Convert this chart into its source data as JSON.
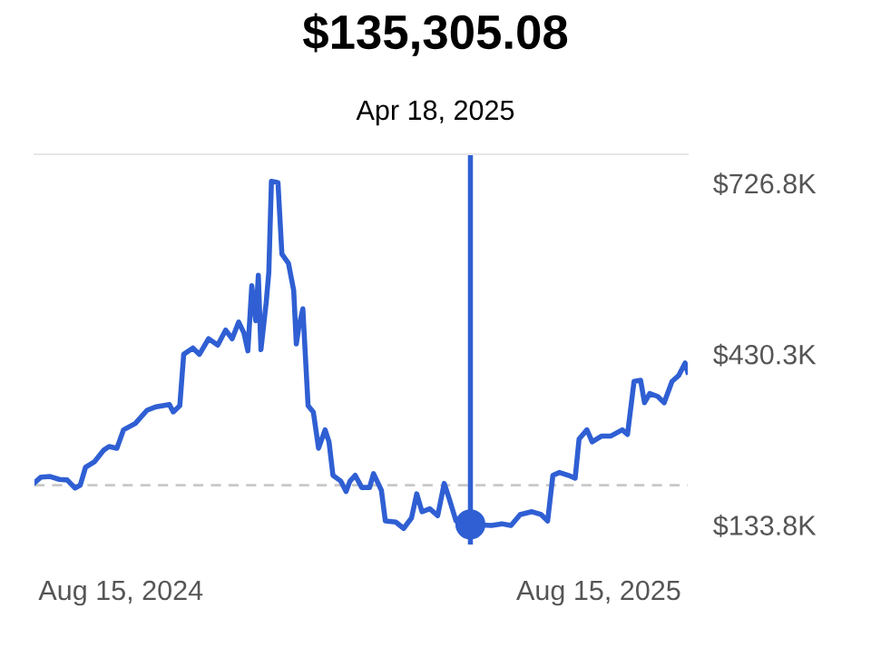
{
  "chart_data": {
    "type": "line",
    "title": "$135,305.08",
    "subtitle": "Apr 18, 2025",
    "x": [
      "2024-06-10",
      "2024-06-15",
      "2024-06-22",
      "2024-06-29",
      "2024-07-05",
      "2024-07-11",
      "2024-07-15",
      "2024-07-19",
      "2024-07-26",
      "2024-08-02",
      "2024-08-06",
      "2024-08-12",
      "2024-08-17",
      "2024-08-26",
      "2024-09-04",
      "2024-09-11",
      "2024-09-21",
      "2024-09-24",
      "2024-09-29",
      "2024-10-02",
      "2024-10-09",
      "2024-10-14",
      "2024-10-21",
      "2024-10-28",
      "2024-11-03",
      "2024-11-08",
      "2024-11-13",
      "2024-11-17",
      "2024-11-20",
      "2024-11-23",
      "2024-11-26",
      "2024-11-28",
      "2024-11-30",
      "2024-12-04",
      "2024-12-06",
      "2024-12-08",
      "2024-12-13",
      "2024-12-16",
      "2024-12-21",
      "2024-12-25",
      "2024-12-27",
      "2024-12-29",
      "2025-01-01",
      "2025-01-05",
      "2025-01-09",
      "2025-01-13",
      "2025-01-18",
      "2025-01-21",
      "2025-01-24",
      "2025-01-30",
      "2025-02-03",
      "2025-02-06",
      "2025-02-10",
      "2025-02-15",
      "2025-02-21",
      "2025-02-24",
      "2025-03-02",
      "2025-03-05",
      "2025-03-13",
      "2025-03-19",
      "2025-03-25",
      "2025-03-29",
      "2025-04-02",
      "2025-04-08",
      "2025-04-14",
      "2025-04-19",
      "2025-04-23",
      "2025-04-28",
      "2025-05-09",
      "2025-05-25",
      "2025-06-02",
      "2025-06-09",
      "2025-06-16",
      "2025-06-25",
      "2025-07-02",
      "2025-07-07",
      "2025-07-11",
      "2025-07-16",
      "2025-07-23",
      "2025-07-28",
      "2025-07-31",
      "2025-08-06",
      "2025-08-10",
      "2025-08-17",
      "2025-08-24",
      "2025-09-02",
      "2025-09-06",
      "2025-09-11",
      "2025-09-16",
      "2025-09-19",
      "2025-09-23",
      "2025-09-29",
      "2025-10-04",
      "2025-10-10",
      "2025-10-15",
      "2025-10-20",
      "2025-10-22"
    ],
    "series": [
      {
        "type": "line",
        "color": "#2f5fd3",
        "values": [
          207,
          217,
          218,
          213,
          212,
          198,
          203,
          234,
          244,
          264,
          270,
          267,
          299,
          310,
          333,
          339,
          343,
          330,
          341,
          430,
          441,
          430,
          457,
          446,
          472,
          457,
          486,
          467,
          436,
          549,
          488,
          567,
          438,
          520,
          572,
          730,
          728,
          604,
          588,
          541,
          448,
          478,
          509,
          341,
          330,
          267,
          299,
          278,
          220,
          210,
          192,
          210,
          220,
          199,
          199,
          223,
          194,
          141,
          139,
          128,
          146,
          188,
          157,
          162,
          150,
          206,
          178,
          141,
          135,
          133,
          136,
          133,
          152,
          157,
          152,
          141,
          220,
          225,
          220,
          215,
          283,
          299,
          278,
          288,
          288,
          299,
          291,
          383,
          385,
          346,
          362,
          357,
          346,
          383,
          393,
          415,
          399
        ]
      },
      {
        "type": "scatter",
        "color": "#2f5fd3",
        "x": [
          "2025-05-09"
        ],
        "values": [
          135
        ]
      }
    ],
    "ref_lines": [
      {
        "axis": "y",
        "value": 203,
        "color": "#c8c8c8",
        "line_style": "dashed"
      },
      {
        "axis": "x",
        "value": "2025-05-09",
        "color": "#2f5fd3",
        "line_style": "solid"
      }
    ],
    "xlim": [
      "2024-06-10",
      "2025-10-22"
    ],
    "xticks": [
      {
        "value": "2024-08-15",
        "label": "Aug 15, 2024"
      },
      {
        "value": "2025-08-15",
        "label": "Aug 15, 2025"
      }
    ],
    "ylim": [
      100,
      777
    ],
    "yticks": [
      {
        "value": 726.8,
        "label": "$726.8K"
      },
      {
        "value": 430.3,
        "label": "$430.3K"
      },
      {
        "value": 133.8,
        "label": "$133.8K"
      }
    ],
    "grid": false,
    "legend": false
  }
}
